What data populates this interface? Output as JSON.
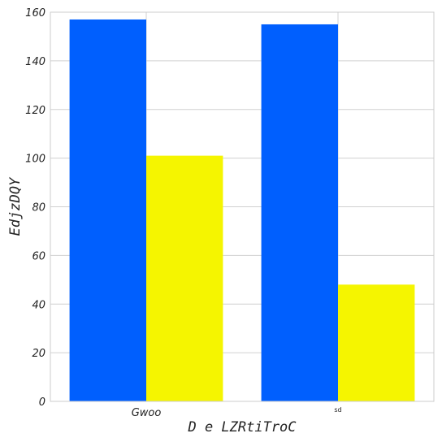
{
  "chart_data": {
    "type": "bar",
    "xlabel": "D e LZRtiTroC",
    "ylabel": "EdjzDQY",
    "categories": [
      "Gwoo",
      "sd"
    ],
    "series": [
      {
        "color": "#005ffe",
        "values": [
          157,
          155
        ]
      },
      {
        "color": "#f5f500",
        "values": [
          101,
          48
        ]
      }
    ],
    "ylim": [
      0,
      160
    ],
    "yticks": [
      0,
      20,
      40,
      60,
      80,
      100,
      120,
      140,
      160
    ],
    "grid": true
  }
}
